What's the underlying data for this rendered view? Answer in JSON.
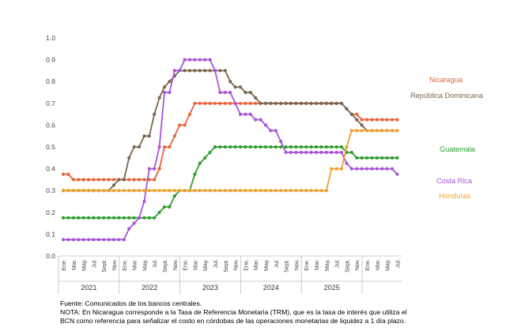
{
  "chart_data": {
    "type": "line",
    "title": "",
    "xlabel": "",
    "ylabel": "",
    "ylim": [
      0,
      1.0
    ],
    "yticks": [
      "0.0",
      "0.1",
      "0.2",
      "0.3",
      "0.4",
      "0.5",
      "0.6",
      "0.7",
      "0.8",
      "0.9",
      "1.0"
    ],
    "grid": false,
    "legend": "inline-right",
    "start_month": "2021-01",
    "month_labels": [
      "Ene.",
      "Mar.",
      "May.",
      "Jul.",
      "Sept.",
      "Nov."
    ],
    "years": [
      "2021",
      "2022",
      "2023",
      "2024",
      "2025"
    ],
    "series": [
      {
        "name": "Nicaragua",
        "color": "#E8643C",
        "values": [
          0.375,
          0.375,
          0.35,
          0.35,
          0.35,
          0.35,
          0.35,
          0.35,
          0.35,
          0.35,
          0.35,
          0.35,
          0.35,
          0.35,
          0.35,
          0.35,
          0.35,
          0.35,
          0.35,
          0.4,
          0.5,
          0.5,
          0.55,
          0.6,
          0.6,
          0.65,
          0.7,
          0.7,
          0.7,
          0.7,
          0.7,
          0.7,
          0.7,
          0.7,
          0.7,
          0.7,
          0.7,
          0.7,
          0.7,
          0.7,
          0.7,
          0.7,
          0.7,
          0.7,
          0.7,
          0.7,
          0.7,
          0.7,
          0.7,
          0.7,
          0.7,
          0.7,
          0.7,
          0.7,
          0.7,
          0.7,
          0.675,
          0.65,
          0.65,
          0.625,
          0.625,
          0.625,
          0.625,
          0.625,
          0.625,
          0.625,
          0.625
        ]
      },
      {
        "name": "República Dominicana",
        "color": "#7A6550",
        "values": [
          0.3,
          0.3,
          0.3,
          0.3,
          0.3,
          0.3,
          0.3,
          0.3,
          0.3,
          0.3,
          0.325,
          0.35,
          0.35,
          0.45,
          0.5,
          0.5,
          0.55,
          0.55,
          0.65,
          0.725,
          0.775,
          0.8,
          0.825,
          0.85,
          0.85,
          0.85,
          0.85,
          0.85,
          0.85,
          0.85,
          0.85,
          0.85,
          0.85,
          0.8,
          0.775,
          0.775,
          0.75,
          0.75,
          0.725,
          0.7,
          0.7,
          0.7,
          0.7,
          0.7,
          0.7,
          0.7,
          0.7,
          0.7,
          0.7,
          0.7,
          0.7,
          0.7,
          0.7,
          0.7,
          0.7,
          0.7,
          0.675,
          0.65,
          0.625,
          0.6,
          0.575,
          0.575,
          0.575,
          0.575,
          0.575,
          0.575,
          0.575
        ]
      },
      {
        "name": "Guatemala",
        "color": "#2E9E2E",
        "values": [
          0.175,
          0.175,
          0.175,
          0.175,
          0.175,
          0.175,
          0.175,
          0.175,
          0.175,
          0.175,
          0.175,
          0.175,
          0.175,
          0.175,
          0.175,
          0.175,
          0.175,
          0.175,
          0.175,
          0.2,
          0.225,
          0.225,
          0.275,
          0.3,
          0.3,
          0.3,
          0.375,
          0.425,
          0.45,
          0.475,
          0.5,
          0.5,
          0.5,
          0.5,
          0.5,
          0.5,
          0.5,
          0.5,
          0.5,
          0.5,
          0.5,
          0.5,
          0.5,
          0.5,
          0.5,
          0.5,
          0.5,
          0.5,
          0.5,
          0.5,
          0.5,
          0.5,
          0.5,
          0.5,
          0.5,
          0.5,
          0.475,
          0.475,
          0.45,
          0.45,
          0.45,
          0.45,
          0.45,
          0.45,
          0.45,
          0.45,
          0.45
        ]
      },
      {
        "name": "Costa Rica",
        "color": "#A855D8",
        "values": [
          0.075,
          0.075,
          0.075,
          0.075,
          0.075,
          0.075,
          0.075,
          0.075,
          0.075,
          0.075,
          0.075,
          0.075,
          0.075,
          0.125,
          0.15,
          0.175,
          0.25,
          0.4,
          0.4,
          0.5,
          0.75,
          0.75,
          0.85,
          0.85,
          0.9,
          0.9,
          0.9,
          0.9,
          0.9,
          0.9,
          0.85,
          0.75,
          0.75,
          0.75,
          0.7,
          0.65,
          0.65,
          0.65,
          0.625,
          0.625,
          0.6,
          0.575,
          0.575,
          0.525,
          0.475,
          0.475,
          0.475,
          0.475,
          0.475,
          0.475,
          0.475,
          0.475,
          0.475,
          0.475,
          0.475,
          0.475,
          0.425,
          0.4,
          0.4,
          0.4,
          0.4,
          0.4,
          0.4,
          0.4,
          0.4,
          0.4,
          0.375
        ]
      },
      {
        "name": "Honduras",
        "color": "#F0A030",
        "values": [
          0.3,
          0.3,
          0.3,
          0.3,
          0.3,
          0.3,
          0.3,
          0.3,
          0.3,
          0.3,
          0.3,
          0.3,
          0.3,
          0.3,
          0.3,
          0.3,
          0.3,
          0.3,
          0.3,
          0.3,
          0.3,
          0.3,
          0.3,
          0.3,
          0.3,
          0.3,
          0.3,
          0.3,
          0.3,
          0.3,
          0.3,
          0.3,
          0.3,
          0.3,
          0.3,
          0.3,
          0.3,
          0.3,
          0.3,
          0.3,
          0.3,
          0.3,
          0.3,
          0.3,
          0.3,
          0.3,
          0.3,
          0.3,
          0.3,
          0.3,
          0.3,
          0.3,
          0.3,
          0.4,
          0.4,
          0.4,
          0.5,
          0.575,
          0.575,
          0.575,
          0.575,
          0.575,
          0.575,
          0.575,
          0.575,
          0.575,
          0.575
        ]
      }
    ]
  },
  "notes": {
    "source": "Fuente: Comunicados de los bancos centrales.",
    "note": "NOTA: En Nicaragua corresponde a la Tasa de Referencia Monetaria (TRM), que es la tasa de interés que utiliza el BCN como referencia para señalizar el costo en córdobas de las operaciones monetarias de liquidez a 1 día plazo."
  }
}
